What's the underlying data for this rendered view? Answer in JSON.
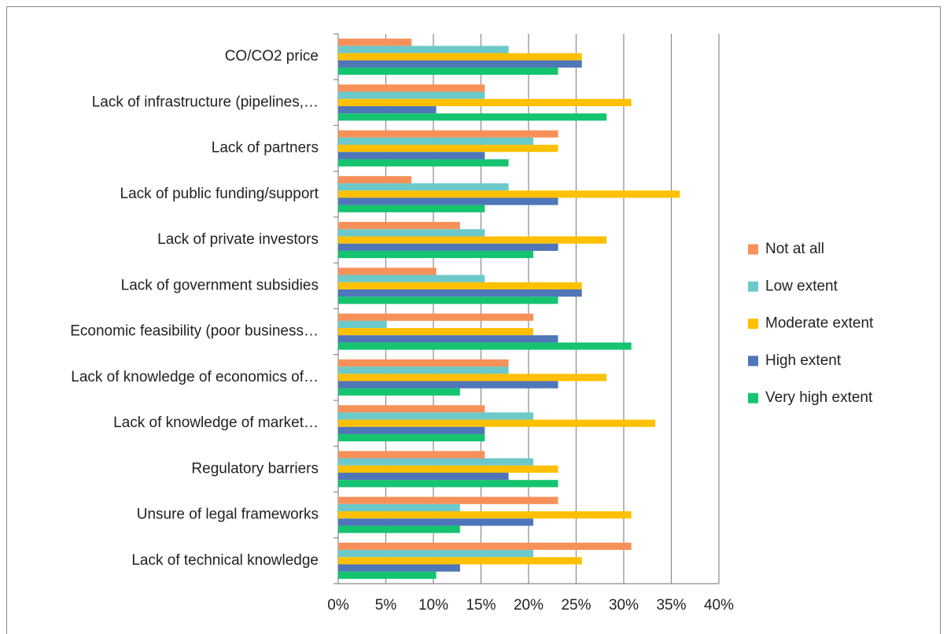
{
  "chart_data": {
    "type": "hbar",
    "categories": [
      "CO/CO2 price",
      "Lack of infrastructure (pipelines,…",
      "Lack of partners",
      "Lack of public funding/support",
      "Lack of private investors",
      "Lack of government subsidies",
      "Economic feasibility (poor business…",
      "Lack of knowledge of economics of…",
      "Lack of knowledge of market…",
      "Regulatory barriers",
      "Unsure of legal frameworks",
      "Lack of technical knowledge"
    ],
    "series": [
      {
        "name": "Not at all",
        "color": "#f79159",
        "values": [
          7.7,
          15.4,
          23.1,
          7.7,
          12.8,
          10.3,
          20.5,
          17.9,
          15.4,
          15.4,
          23.1,
          30.8
        ]
      },
      {
        "name": "Low extent",
        "color": "#6cc9c9",
        "values": [
          17.9,
          15.4,
          20.5,
          17.9,
          15.4,
          15.4,
          5.1,
          17.9,
          20.5,
          20.5,
          12.8,
          20.5
        ]
      },
      {
        "name": "Moderate extent",
        "color": "#ffc000",
        "values": [
          25.6,
          30.8,
          23.1,
          35.9,
          28.2,
          25.6,
          20.5,
          28.2,
          33.3,
          23.1,
          30.8,
          25.6
        ]
      },
      {
        "name": "High extent",
        "color": "#4f76b8",
        "values": [
          25.6,
          10.3,
          15.4,
          23.1,
          23.1,
          25.6,
          23.1,
          23.1,
          15.4,
          17.9,
          20.5,
          12.8
        ]
      },
      {
        "name": "Very high extent",
        "color": "#14c46f",
        "values": [
          23.1,
          28.2,
          17.9,
          15.4,
          20.5,
          23.1,
          30.8,
          12.8,
          15.4,
          23.1,
          12.8,
          10.3
        ]
      }
    ],
    "xlim": [
      0,
      40
    ],
    "xticks": [
      {
        "value": 0,
        "label": "0%"
      },
      {
        "value": 5,
        "label": "5%"
      },
      {
        "value": 10,
        "label": "10%"
      },
      {
        "value": 15,
        "label": "15%"
      },
      {
        "value": 20,
        "label": "20%"
      },
      {
        "value": 25,
        "label": "25%"
      },
      {
        "value": 30,
        "label": "30%"
      },
      {
        "value": 35,
        "label": "35%"
      },
      {
        "value": 40,
        "label": "40%"
      }
    ],
    "grid": true,
    "legend": "right"
  }
}
